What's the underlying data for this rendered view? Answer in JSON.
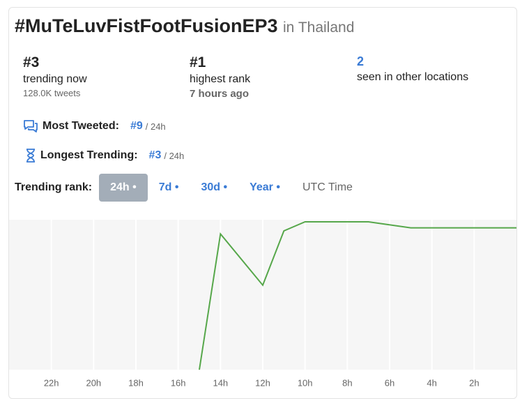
{
  "header": {
    "title": "#MuTeLuvFistFootFusionEP3",
    "location": "in Thailand"
  },
  "stats": [
    {
      "value": "#3",
      "label": "trending now",
      "sub": "128.0K tweets"
    },
    {
      "value": "#1",
      "label": "highest rank",
      "sub": "7 hours ago"
    },
    {
      "value": "2",
      "label": "seen in other locations"
    }
  ],
  "records": [
    {
      "label": "Most Tweeted:",
      "rank": "#9",
      "period": "/ 24h"
    },
    {
      "label": "Longest Trending:",
      "rank": "#3",
      "period": "/ 24h"
    }
  ],
  "tabs": {
    "label": "Trending rank:",
    "options": [
      "24h •",
      "7d •",
      "30d •",
      "Year •",
      "UTC Time"
    ],
    "active": 0
  },
  "chart_data": {
    "type": "line",
    "color": "#56a74a",
    "x": [
      15,
      14,
      12,
      11,
      10,
      7,
      5,
      0
    ],
    "values": [
      50,
      5,
      22,
      4,
      1,
      1,
      3,
      3
    ],
    "xlim": [
      24,
      0
    ],
    "ylim": [
      50,
      1
    ],
    "xticks": [
      {
        "value": 22,
        "label": "22h"
      },
      {
        "value": 20,
        "label": "20h"
      },
      {
        "value": 18,
        "label": "18h"
      },
      {
        "value": 16,
        "label": "16h"
      },
      {
        "value": 14,
        "label": "14h"
      },
      {
        "value": 12,
        "label": "12h"
      },
      {
        "value": 10,
        "label": "10h"
      },
      {
        "value": 8,
        "label": "8h"
      },
      {
        "value": 6,
        "label": "6h"
      },
      {
        "value": 4,
        "label": "4h"
      },
      {
        "value": 2,
        "label": "2h"
      }
    ],
    "grid": true
  }
}
